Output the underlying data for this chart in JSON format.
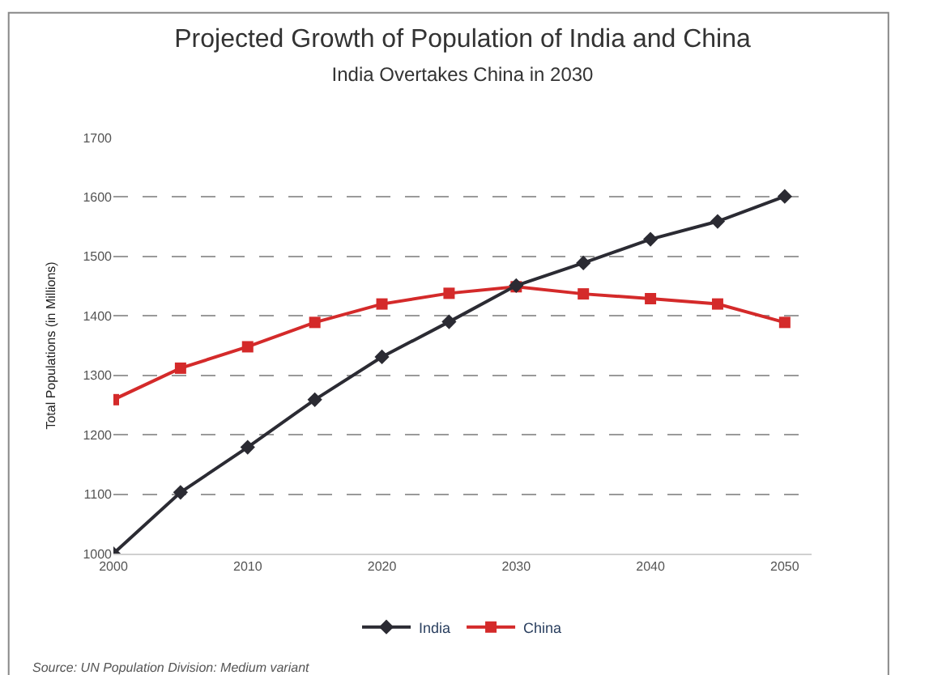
{
  "chart_data": {
    "type": "line",
    "title": "Projected Growth of Population of India and China",
    "subtitle": "India Overtakes China in 2030",
    "ylabel": "Total Populations (in Millions)",
    "x": [
      2000,
      2005,
      2010,
      2015,
      2020,
      2025,
      2030,
      2035,
      2040,
      2045,
      2050
    ],
    "series": [
      {
        "name": "India",
        "color": "#2b2b33",
        "marker": "diamond",
        "values": [
          1000,
          1103,
          1179,
          1259,
          1331,
          1390,
          1451,
          1489,
          1529,
          1559,
          1601
        ]
      },
      {
        "name": "China",
        "color": "#d42a2a",
        "marker": "square",
        "values": [
          1259,
          1312,
          1348,
          1389,
          1420,
          1438,
          1449,
          1437,
          1429,
          1420,
          1389
        ]
      }
    ],
    "xlim": [
      2000,
      2052
    ],
    "xticks": [
      2000,
      2010,
      2020,
      2030,
      2040,
      2050
    ],
    "ylim": [
      1000,
      1700
    ],
    "yticks": [
      1000,
      1100,
      1200,
      1300,
      1400,
      1500,
      1600,
      1700
    ],
    "grid": "y",
    "legend": "bottom",
    "line_style": "solid",
    "annotations": [
      "Source: UN Population Division: Medium variant"
    ]
  }
}
